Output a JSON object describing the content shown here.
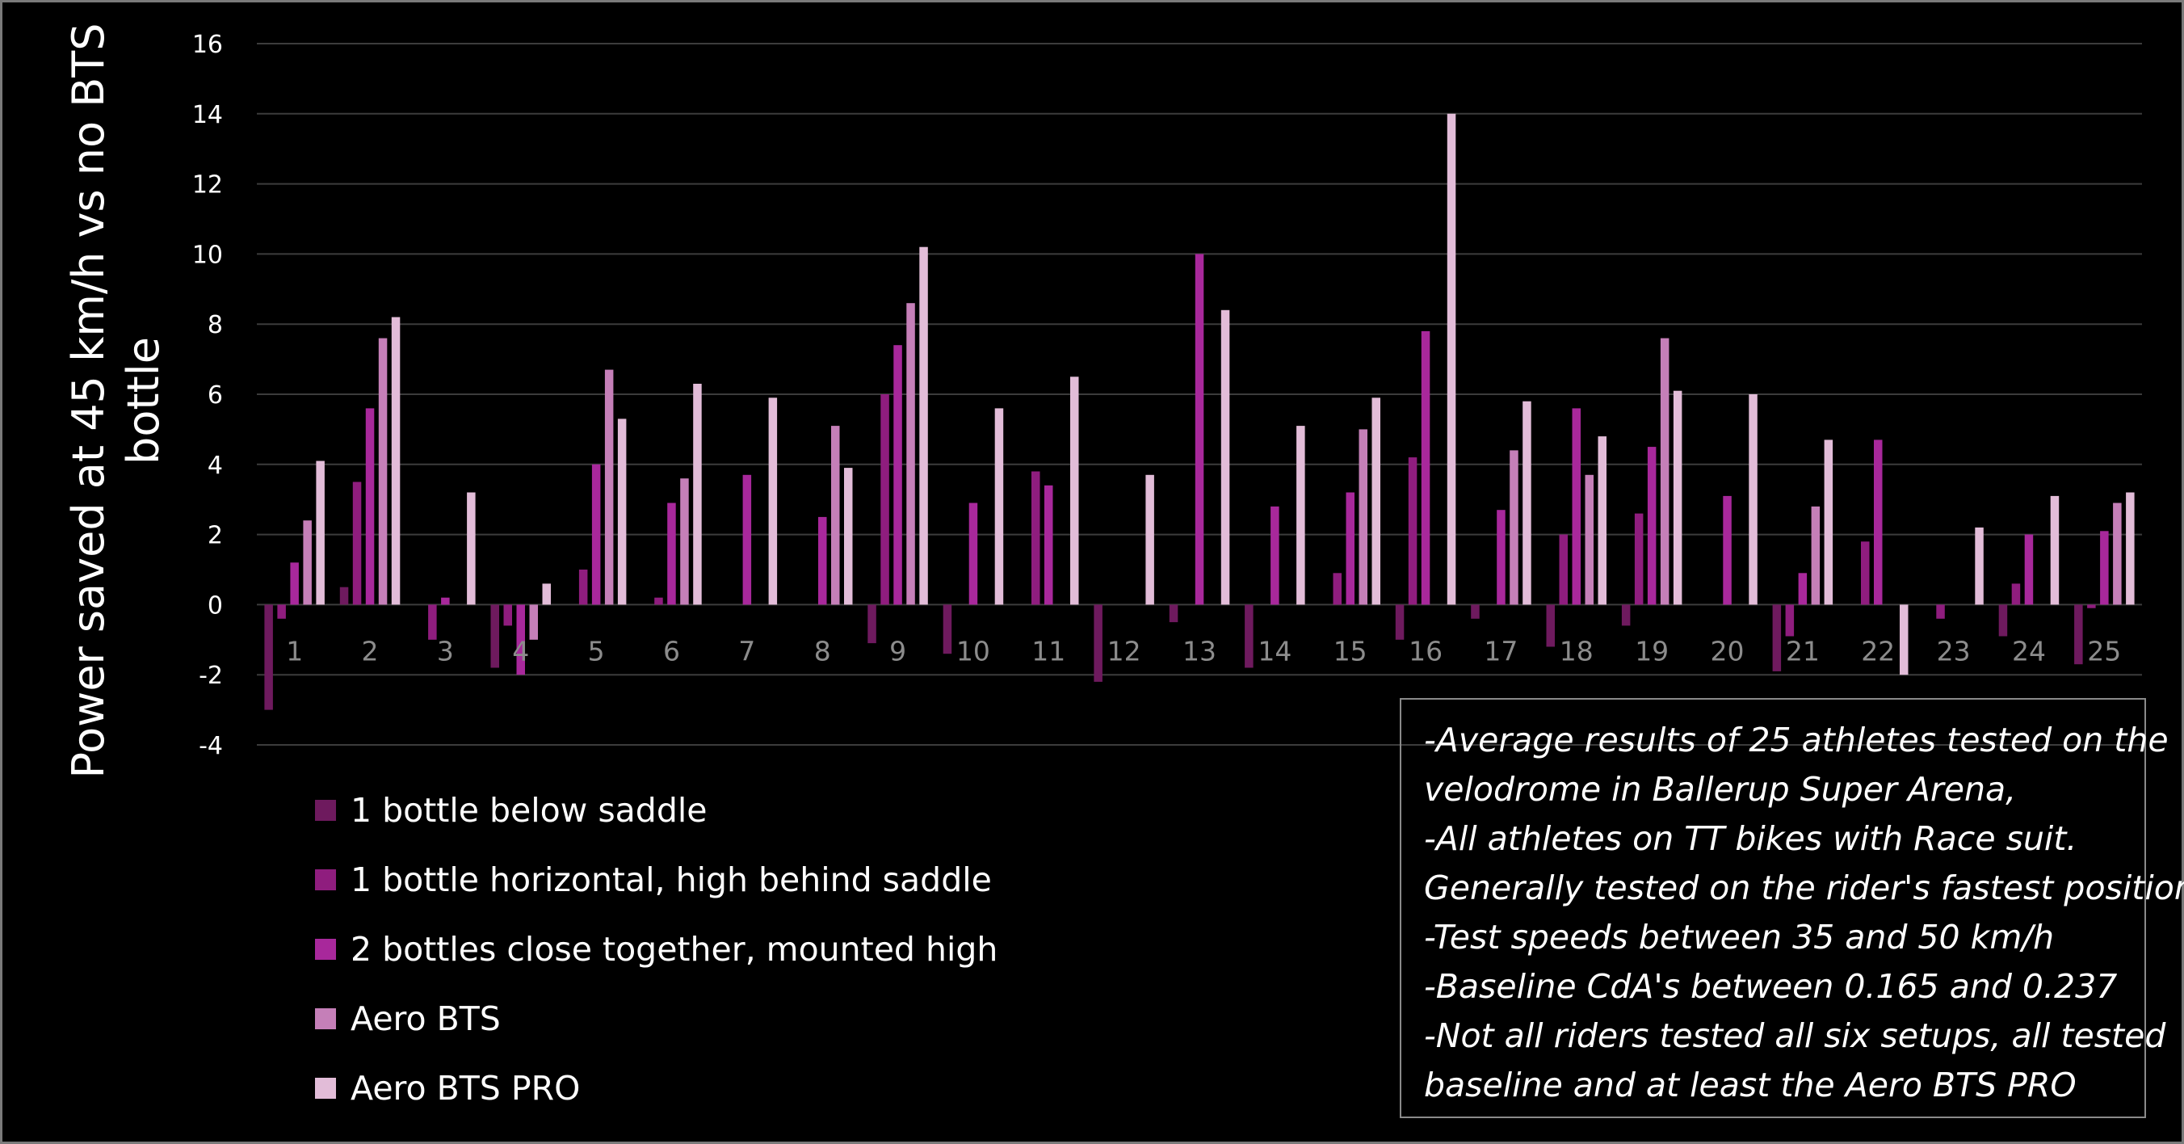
{
  "chart_data": {
    "type": "bar",
    "ylabel": "Power saved at 45 km/h vs no BTS bottle",
    "xlabel": "",
    "ylim": [
      -4,
      16
    ],
    "yticks": [
      -4,
      -2,
      0,
      2,
      4,
      6,
      8,
      10,
      12,
      14,
      16
    ],
    "grid": true,
    "legend_position": "bottom-left",
    "categories": [
      "1",
      "2",
      "3",
      "4",
      "5",
      "6",
      "7",
      "8",
      "9",
      "10",
      "11",
      "12",
      "13",
      "14",
      "15",
      "16",
      "17",
      "18",
      "19",
      "20",
      "21",
      "22",
      "23",
      "24",
      "25"
    ],
    "series": [
      {
        "name": "1 bottle below saddle",
        "color": "#6e1a5e",
        "values": [
          -3,
          0.5,
          null,
          -1.8,
          null,
          null,
          null,
          null,
          -1.1,
          -1.4,
          null,
          -2.2,
          -0.5,
          -1.8,
          null,
          -1,
          -0.4,
          -1.2,
          -0.6,
          null,
          -1.9,
          null,
          null,
          -0.9,
          -1.7
        ]
      },
      {
        "name": "1 bottle horizontal, high behind saddle",
        "color": "#8f1d7e",
        "values": [
          -0.4,
          3.5,
          -1,
          -0.6,
          1,
          0.2,
          null,
          null,
          6,
          null,
          3.8,
          null,
          null,
          null,
          0.9,
          4.2,
          null,
          2,
          2.6,
          null,
          -0.9,
          1.8,
          -0.4,
          0.6,
          -0.1
        ]
      },
      {
        "name": "2 bottles close together, mounted high",
        "color": "#a8289b",
        "values": [
          1.2,
          5.6,
          0.2,
          -2,
          4,
          2.9,
          3.7,
          2.5,
          7.4,
          2.9,
          3.4,
          null,
          10,
          2.8,
          3.2,
          7.8,
          2.7,
          5.6,
          4.5,
          3.1,
          0.9,
          4.7,
          null,
          2,
          2.1
        ]
      },
      {
        "name": "Aero BTS",
        "color": "#c57fb8",
        "values": [
          2.4,
          7.6,
          null,
          -1,
          6.7,
          3.6,
          null,
          5.1,
          8.6,
          null,
          null,
          null,
          null,
          null,
          5,
          null,
          4.4,
          3.7,
          7.6,
          null,
          2.8,
          null,
          null,
          null,
          2.9
        ]
      },
      {
        "name": "Aero BTS PRO",
        "color": "#e2bcd8",
        "values": [
          4.1,
          8.2,
          3.2,
          0.6,
          5.3,
          6.3,
          5.9,
          3.9,
          10.2,
          5.6,
          6.5,
          3.7,
          8.4,
          5.1,
          5.9,
          14,
          5.8,
          4.8,
          6.1,
          6,
          4.7,
          -2,
          2.2,
          3.1,
          3.2
        ]
      }
    ],
    "annotation_lines": [
      "-Average results of 25 athletes tested on the",
      "velodrome in Ballerup Super Arena,",
      "-All athletes on TT bikes with Race suit.",
      "Generally tested on the rider's fastest position",
      "-Test speeds between 35 and 50 km/h",
      "-Baseline CdA's between 0.165 and 0.237",
      "-Not all riders tested all six setups, all tested",
      "baseline and at least the Aero BTS PRO"
    ]
  }
}
